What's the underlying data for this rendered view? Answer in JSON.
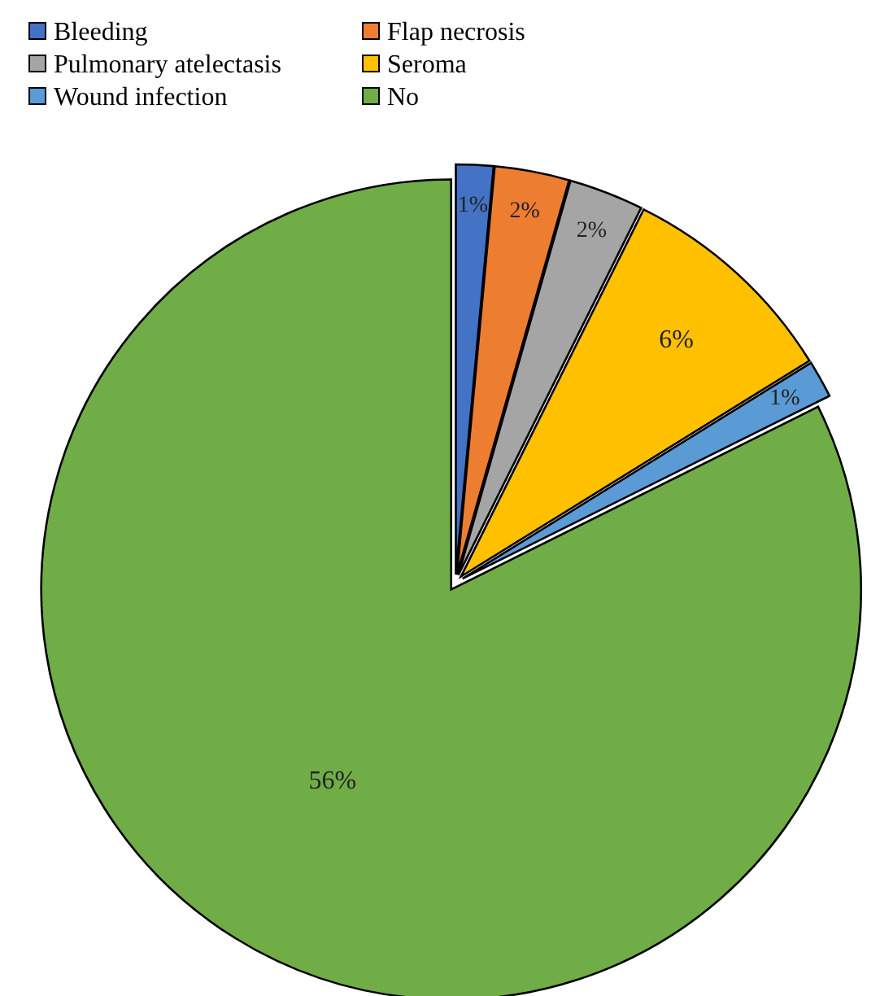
{
  "chart_data": {
    "type": "pie",
    "categories": [
      "Bleeding",
      "Flap necrosis",
      "Pulmonary atelectasis",
      "Seroma",
      "Wound infection",
      "No"
    ],
    "values": [
      1,
      2,
      2,
      6,
      1,
      56
    ],
    "colors": [
      "#4472c4",
      "#ed7d31",
      "#a5a5a5",
      "#ffc000",
      "#5b9bd5",
      "#70ad47"
    ],
    "value_labels": [
      "1%",
      "2%",
      "2%",
      "6%",
      "1%",
      "56%"
    ],
    "legend": "top left"
  }
}
